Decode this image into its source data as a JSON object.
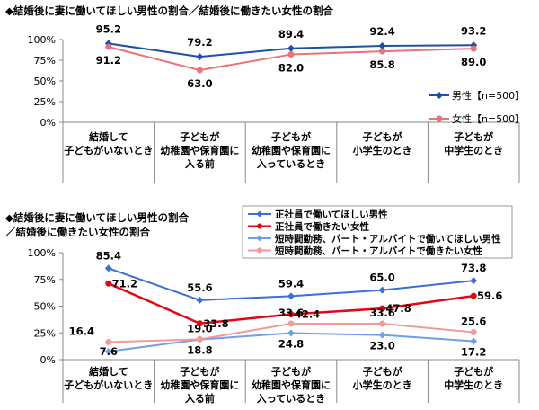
{
  "colors": {
    "men": "#1f4fa8",
    "women": "#e8737a",
    "full_men": "#3b6fd6",
    "full_women": "#e30613",
    "part_men": "#6f9fe8",
    "part_women": "#f29a9a",
    "axis": "#888888",
    "grid": "#d9d9d9"
  },
  "chart_data": [
    {
      "type": "line",
      "title": "◆結婚後に妻に働いてほしい男性の割合／結婚後に働きたい女性の割合",
      "categories": [
        [
          "結婚して",
          "子どもがいないとき"
        ],
        [
          "子どもが",
          "幼稚園や保育園に",
          "入る前"
        ],
        [
          "子どもが",
          "幼稚園や保育園に",
          "入っているとき"
        ],
        [
          "子どもが",
          "小学生のとき"
        ],
        [
          "子どもが",
          "中学生のとき"
        ]
      ],
      "yticks": [
        "100%",
        "75%",
        "50%",
        "25%",
        "0%"
      ],
      "ylim": [
        0,
        100
      ],
      "legend_position": "right",
      "series": [
        {
          "name": "男性【n=500】",
          "values": [
            95.2,
            79.2,
            89.4,
            92.4,
            93.2
          ],
          "labels": [
            "95.2",
            "79.2",
            "89.4",
            "92.4",
            "93.2"
          ]
        },
        {
          "name": "女性【n=500】",
          "values": [
            91.2,
            63.0,
            82.0,
            85.8,
            89.0
          ],
          "labels": [
            "91.2",
            "63.0",
            "82.0",
            "85.8",
            "89.0"
          ]
        }
      ]
    },
    {
      "type": "line",
      "title_lines": [
        "◆結婚後に妻に働いてほしい男性の割合",
        "／結婚後に働きたい女性の割合"
      ],
      "categories": [
        [
          "結婚して",
          "子どもがいないとき"
        ],
        [
          "子どもが",
          "幼稚園や保育園に",
          "入る前"
        ],
        [
          "子どもが",
          "幼稚園や保育園に",
          "入っているとき"
        ],
        [
          "子どもが",
          "小学生のとき"
        ],
        [
          "子どもが",
          "中学生のとき"
        ]
      ],
      "yticks": [
        "100%",
        "75%",
        "50%",
        "25%",
        "0%"
      ],
      "ylim": [
        0,
        100
      ],
      "legend_position": "top",
      "series": [
        {
          "name": "正社員で働いてほしい男性",
          "values": [
            85.4,
            55.6,
            59.4,
            65.0,
            73.8
          ],
          "labels": [
            "85.4",
            "55.6",
            "59.4",
            "65.0",
            "73.8"
          ]
        },
        {
          "name": "正社員で働きたい女性",
          "values": [
            71.2,
            33.8,
            42.4,
            47.8,
            59.6
          ],
          "labels": [
            "71.2",
            "33.8",
            "42.4",
            "47.8",
            "59.6"
          ]
        },
        {
          "name": "短時間勤務、パート・アルバイトで働いてほしい男性",
          "values": [
            7.6,
            18.8,
            24.8,
            23.0,
            17.2
          ],
          "labels": [
            "7.6",
            "18.8",
            "24.8",
            "23.0",
            "17.2"
          ]
        },
        {
          "name": "短時間勤務、パート・アルバイトで働きたい女性",
          "values": [
            16.4,
            19.0,
            33.6,
            33.6,
            25.6
          ],
          "labels": [
            "16.4",
            "19.0",
            "33.6",
            "33.6",
            "25.6"
          ]
        }
      ]
    }
  ]
}
